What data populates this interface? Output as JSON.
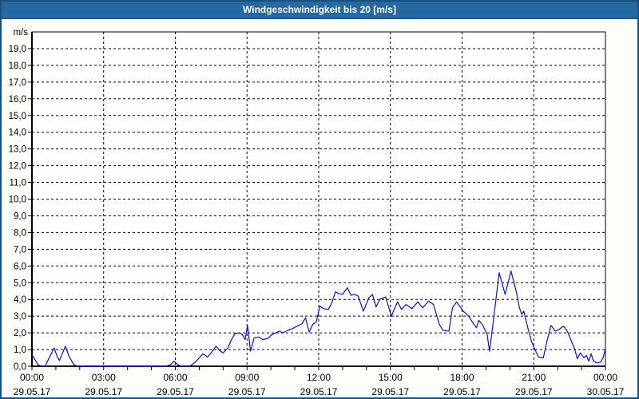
{
  "window": {
    "title": "Windgeschwindigkeit bis 20 [m/s]"
  },
  "colors": {
    "title_bar": "#2569a0",
    "frame_border": "#15507e",
    "title_text": "#ffffff",
    "page_bg": "#fdfdfa",
    "plot_bg": "#fdfefd",
    "grid": "#000000",
    "axis": "#000000",
    "label_text": "#000000",
    "line": "#0f0fd0"
  },
  "chart_data": {
    "type": "line",
    "title": "Windgeschwindigkeit bis 20 [m/s]",
    "ylabel": "m/s",
    "xlabel": "",
    "ylim": [
      0,
      20
    ],
    "xlim_hours": [
      0,
      24
    ],
    "grid": "dashed, horizontal every 1.0 m/s, vertical every 3 h, hourly minor ticks",
    "legend_position": "none",
    "y_tick_labels": [
      "0,0",
      "1,0",
      "2,0",
      "3,0",
      "4,0",
      "5,0",
      "6,0",
      "7,0",
      "8,0",
      "9,0",
      "10,0",
      "11,0",
      "12,0",
      "13,0",
      "14,0",
      "15,0",
      "16,0",
      "17,0",
      "18,0",
      "19,0"
    ],
    "x_ticks": [
      {
        "time": "00:00",
        "date": "29.05.17"
      },
      {
        "time": "03:00",
        "date": "29.05.17"
      },
      {
        "time": "06:00",
        "date": "29.05.17"
      },
      {
        "time": "09:00",
        "date": "29.05.17"
      },
      {
        "time": "12:00",
        "date": "29.05.17"
      },
      {
        "time": "15:00",
        "date": "29.05.17"
      },
      {
        "time": "18:00",
        "date": "29.05.17"
      },
      {
        "time": "21:00",
        "date": "29.05.17"
      },
      {
        "time": "00:00",
        "date": "30.05.17"
      }
    ],
    "series": [
      {
        "name": "Windgeschwindigkeit",
        "unit": "m/s",
        "color": "#0f0fd0",
        "points": [
          [
            0,
            0.7
          ],
          [
            0.1,
            0.45
          ],
          [
            0.25,
            0.1
          ],
          [
            0.4,
            0
          ],
          [
            0.55,
            0
          ],
          [
            0.7,
            0.45
          ],
          [
            0.93,
            1.1
          ],
          [
            1.05,
            0.6
          ],
          [
            1.15,
            0.35
          ],
          [
            1.4,
            1.2
          ],
          [
            1.55,
            0.6
          ],
          [
            1.75,
            0.1
          ],
          [
            1.9,
            0
          ],
          [
            2.5,
            0
          ],
          [
            3,
            0
          ],
          [
            4,
            0
          ],
          [
            5,
            0
          ],
          [
            5.6,
            0
          ],
          [
            5.8,
            0.1
          ],
          [
            5.95,
            0.3
          ],
          [
            6.1,
            0.1
          ],
          [
            6.25,
            0
          ],
          [
            6.6,
            0
          ],
          [
            6.8,
            0.2
          ],
          [
            7,
            0.5
          ],
          [
            7.15,
            0.75
          ],
          [
            7.35,
            0.55
          ],
          [
            7.55,
            0.9
          ],
          [
            7.7,
            1.2
          ],
          [
            7.85,
            0.95
          ],
          [
            8,
            0.8
          ],
          [
            8.2,
            1.1
          ],
          [
            8.35,
            1.6
          ],
          [
            8.5,
            1.95
          ],
          [
            8.65,
            2.0
          ],
          [
            8.8,
            1.9
          ],
          [
            8.92,
            1.6
          ],
          [
            9.02,
            2.45
          ],
          [
            9.15,
            0.9
          ],
          [
            9.3,
            1.7
          ],
          [
            9.5,
            1.75
          ],
          [
            9.65,
            1.6
          ],
          [
            9.85,
            1.65
          ],
          [
            10,
            1.85
          ],
          [
            10.2,
            2.0
          ],
          [
            10.35,
            2.1
          ],
          [
            10.5,
            2.0
          ],
          [
            10.7,
            2.15
          ],
          [
            10.9,
            2.25
          ],
          [
            11.1,
            2.4
          ],
          [
            11.3,
            2.55
          ],
          [
            11.45,
            2.9
          ],
          [
            11.6,
            2.05
          ],
          [
            11.75,
            2.5
          ],
          [
            11.9,
            2.65
          ],
          [
            12.05,
            3.6
          ],
          [
            12.2,
            3.45
          ],
          [
            12.4,
            3.4
          ],
          [
            12.55,
            3.8
          ],
          [
            12.7,
            4.45
          ],
          [
            12.85,
            4.35
          ],
          [
            13,
            4.3
          ],
          [
            13.2,
            4.7
          ],
          [
            13.35,
            4.25
          ],
          [
            13.5,
            4.3
          ],
          [
            13.65,
            4.2
          ],
          [
            13.87,
            3.3
          ],
          [
            14.1,
            4.1
          ],
          [
            14.25,
            4.3
          ],
          [
            14.4,
            3.55
          ],
          [
            14.55,
            4.0
          ],
          [
            14.8,
            4.15
          ],
          [
            15.04,
            3.0
          ],
          [
            15.3,
            3.85
          ],
          [
            15.47,
            3.4
          ],
          [
            15.65,
            3.7
          ],
          [
            15.9,
            3.45
          ],
          [
            16.15,
            3.85
          ],
          [
            16.35,
            3.5
          ],
          [
            16.6,
            3.9
          ],
          [
            16.8,
            3.7
          ],
          [
            17.05,
            2.5
          ],
          [
            17.2,
            2.15
          ],
          [
            17.45,
            2.1
          ],
          [
            17.6,
            3.5
          ],
          [
            17.77,
            3.85
          ],
          [
            18.05,
            3.3
          ],
          [
            18.27,
            3.0
          ],
          [
            18.45,
            2.6
          ],
          [
            18.6,
            2.3
          ],
          [
            18.7,
            2.75
          ],
          [
            18.87,
            2.45
          ],
          [
            19.05,
            1.9
          ],
          [
            19.15,
            0.9
          ],
          [
            19.3,
            2.6
          ],
          [
            19.55,
            5.6
          ],
          [
            19.8,
            4.3
          ],
          [
            20.05,
            5.7
          ],
          [
            20.28,
            4.4
          ],
          [
            20.4,
            3.5
          ],
          [
            20.5,
            3.1
          ],
          [
            20.58,
            3.3
          ],
          [
            20.75,
            2.3
          ],
          [
            20.9,
            1.5
          ],
          [
            21.05,
            1.0
          ],
          [
            21.2,
            0.55
          ],
          [
            21.4,
            0.5
          ],
          [
            21.55,
            1.5
          ],
          [
            21.72,
            2.45
          ],
          [
            21.9,
            2.1
          ],
          [
            22.05,
            2.2
          ],
          [
            22.25,
            2.4
          ],
          [
            22.4,
            2.1
          ],
          [
            22.55,
            1.6
          ],
          [
            22.72,
            1.0
          ],
          [
            22.82,
            0.45
          ],
          [
            22.95,
            0.8
          ],
          [
            23.1,
            0.5
          ],
          [
            23.2,
            0.65
          ],
          [
            23.3,
            0.3
          ],
          [
            23.4,
            0.75
          ],
          [
            23.5,
            0.3
          ],
          [
            23.65,
            0.2
          ],
          [
            23.8,
            0.25
          ],
          [
            23.9,
            0.5
          ],
          [
            24,
            1.05
          ]
        ]
      }
    ]
  }
}
